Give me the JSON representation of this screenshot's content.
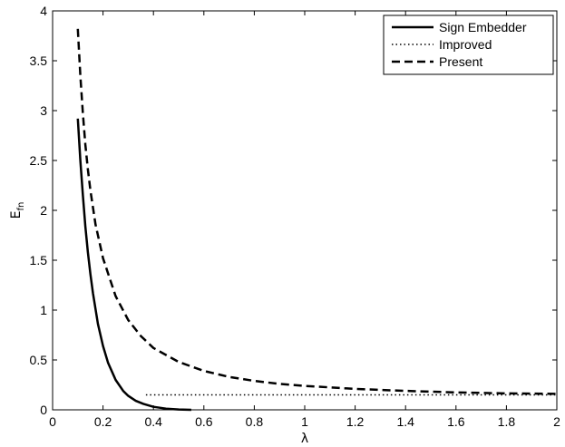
{
  "chart_data": {
    "type": "line",
    "title": "",
    "xlabel": "λ",
    "ylabel_main": "E",
    "ylabel_sub": "fn",
    "xlim": [
      0,
      2
    ],
    "ylim": [
      0,
      4
    ],
    "xticks": [
      0,
      0.2,
      0.4,
      0.6,
      0.8,
      1,
      1.2,
      1.4,
      1.6,
      1.8,
      2
    ],
    "yticks": [
      0,
      0.5,
      1,
      1.5,
      2,
      2.5,
      3,
      3.5,
      4
    ],
    "xtick_labels": [
      "0",
      "0.2",
      "0.4",
      "0.6",
      "0.8",
      "1",
      "1.2",
      "1.4",
      "1.6",
      "1.8",
      "2"
    ],
    "ytick_labels": [
      "0",
      "0.5",
      "1",
      "1.5",
      "2",
      "2.5",
      "3",
      "3.5",
      "4"
    ],
    "grid": false,
    "legend_position": "top-right",
    "series": [
      {
        "name": "Sign Embedder",
        "style": "solid",
        "color": "#000000",
        "x": [
          0.1,
          0.11,
          0.12,
          0.13,
          0.14,
          0.15,
          0.16,
          0.18,
          0.2,
          0.22,
          0.25,
          0.28,
          0.3,
          0.33,
          0.36,
          0.4,
          0.45,
          0.5,
          0.55
        ],
        "y": [
          2.92,
          2.5,
          2.15,
          1.84,
          1.58,
          1.36,
          1.17,
          0.86,
          0.64,
          0.47,
          0.3,
          0.19,
          0.14,
          0.09,
          0.06,
          0.03,
          0.012,
          0.004,
          0.0
        ]
      },
      {
        "name": "Improved",
        "style": "dotted",
        "color": "#000000",
        "x": [
          0.37,
          2.0
        ],
        "y": [
          0.15,
          0.15
        ]
      },
      {
        "name": "Present",
        "style": "dashed",
        "color": "#000000",
        "x": [
          0.1,
          0.11,
          0.12,
          0.13,
          0.14,
          0.15,
          0.17,
          0.2,
          0.25,
          0.3,
          0.35,
          0.4,
          0.5,
          0.6,
          0.7,
          0.8,
          0.9,
          1.0,
          1.2,
          1.4,
          1.6,
          1.8,
          2.0
        ],
        "y": [
          3.82,
          3.35,
          2.97,
          2.66,
          2.41,
          2.2,
          1.86,
          1.52,
          1.14,
          0.9,
          0.74,
          0.62,
          0.48,
          0.39,
          0.33,
          0.29,
          0.26,
          0.24,
          0.21,
          0.19,
          0.175,
          0.165,
          0.16
        ]
      }
    ]
  }
}
